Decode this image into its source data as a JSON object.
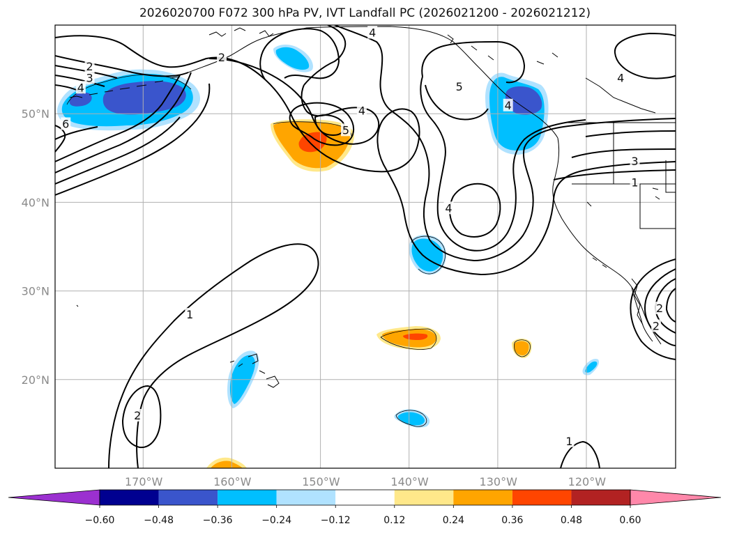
{
  "title": "2026020700 F072 300 hPa PV, IVT Landfall PC (2026021200 - 2026021212)",
  "map": {
    "extent": {
      "lon_min": -180,
      "lon_max": -110,
      "lat_min": 10,
      "lat_max": 60
    },
    "gridlines": true,
    "lat_labels": [
      {
        "lat": 50,
        "label": "50°N"
      },
      {
        "lat": 40,
        "label": "40°N"
      },
      {
        "lat": 30,
        "label": "30°N"
      },
      {
        "lat": 20,
        "label": "20°N"
      }
    ],
    "lon_labels": [
      {
        "lon": -170,
        "label": "170°W"
      },
      {
        "lon": -160,
        "label": "160°W"
      },
      {
        "lon": -150,
        "label": "150°W"
      },
      {
        "lon": -140,
        "label": "140°W"
      },
      {
        "lon": -130,
        "label": "130°W"
      },
      {
        "lon": -120,
        "label": "120°W"
      }
    ],
    "contour_labels": [
      {
        "text": "2",
        "lon": -176.1,
        "lat": 55.3
      },
      {
        "text": "3",
        "lon": -176.1,
        "lat": 54.0
      },
      {
        "text": "4",
        "lon": -177.1,
        "lat": 52.9
      },
      {
        "text": "6",
        "lon": -178.8,
        "lat": 48.8
      },
      {
        "text": "2",
        "lon": -161.2,
        "lat": 56.3
      },
      {
        "text": "4",
        "lon": -144.2,
        "lat": 59.1
      },
      {
        "text": "5",
        "lon": -134.4,
        "lat": 53.0
      },
      {
        "text": "4",
        "lon": -135.6,
        "lat": 39.3
      },
      {
        "text": "4",
        "lon": -145.4,
        "lat": 50.3
      },
      {
        "text": "5",
        "lon": -147.2,
        "lat": 48.1
      },
      {
        "text": "4",
        "lon": -116.2,
        "lat": 54.0
      },
      {
        "text": "3",
        "lon": -114.6,
        "lat": 44.6
      },
      {
        "text": "1",
        "lon": -114.6,
        "lat": 42.2
      },
      {
        "text": "1",
        "lon": -164.8,
        "lat": 27.3
      },
      {
        "text": "2",
        "lon": -170.7,
        "lat": 15.9
      },
      {
        "text": "1",
        "lon": -122.0,
        "lat": 13.0
      },
      {
        "text": "4",
        "lon": -128.9,
        "lat": 50.9
      },
      {
        "text": "2",
        "lon": -111.8,
        "lat": 28.0
      },
      {
        "text": "2",
        "lon": -112.2,
        "lat": 26.0
      }
    ]
  },
  "colorbar": {
    "levels": [
      -0.6,
      -0.48,
      -0.36,
      -0.24,
      -0.12,
      0.12,
      0.24,
      0.36,
      0.48,
      0.6
    ],
    "tick_labels": [
      "−0.60",
      "−0.48",
      "−0.36",
      "−0.24",
      "−0.12",
      "0.12",
      "0.24",
      "0.36",
      "0.48",
      "0.60"
    ],
    "colors": [
      "#9b30d0",
      "#000090",
      "#3a55cc",
      "#00bfff",
      "#b0e2ff",
      "#ffffff",
      "#ffe88a",
      "#ffa500",
      "#ff4500",
      "#b22222",
      "#ff88aa"
    ],
    "extend": "both"
  },
  "pv_anomalies": [
    {
      "sign": "negative",
      "lon": -174.0,
      "lat": 50.8,
      "peak": -0.45
    },
    {
      "sign": "negative",
      "lon": -168.5,
      "lat": 51.5,
      "peak": -0.55
    },
    {
      "sign": "negative",
      "lon": -152.0,
      "lat": 56.0,
      "peak": -0.3
    },
    {
      "sign": "positive",
      "lon": -150.0,
      "lat": 47.0,
      "peak": 0.42
    },
    {
      "sign": "negative",
      "lon": -127.5,
      "lat": 50.0,
      "peak": -0.55
    },
    {
      "sign": "negative",
      "lon": -139.5,
      "lat": 34.5,
      "peak": -0.3
    },
    {
      "sign": "positive",
      "lon": -139.0,
      "lat": 25.0,
      "peak": 0.38
    },
    {
      "sign": "positive",
      "lon": -127.5,
      "lat": 23.5,
      "peak": 0.28
    },
    {
      "sign": "negative",
      "lon": -139.0,
      "lat": 15.8,
      "peak": -0.3
    },
    {
      "sign": "negative",
      "lon": -158.5,
      "lat": 21.0,
      "peak": -0.28
    },
    {
      "sign": "negative",
      "lon": -120.5,
      "lat": 21.5,
      "peak": -0.2
    },
    {
      "sign": "positive",
      "lon": -160.0,
      "lat": 10.3,
      "peak": 0.3
    }
  ]
}
